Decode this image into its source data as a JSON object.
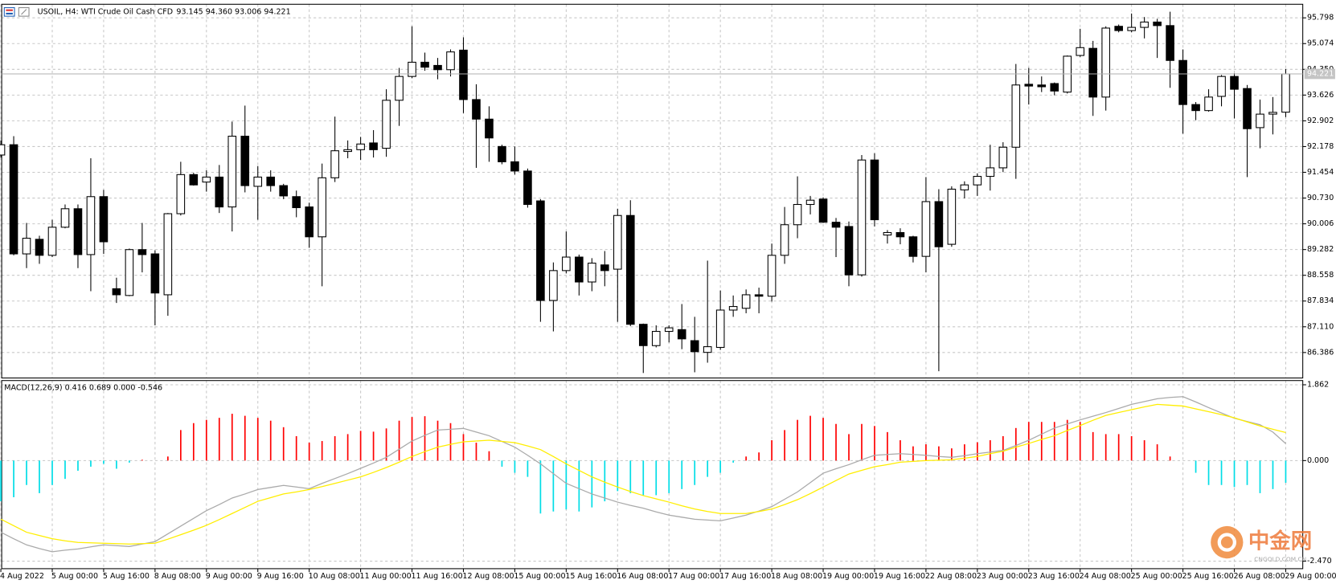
{
  "chart_data": [
    {
      "type": "candlestick",
      "title": "USOIL, H4:  WTI Crude Oil Cash CFD",
      "ohlc_text": "93.145 94.360 93.006 94.221",
      "categories": [
        "4 Aug 2022",
        null,
        null,
        null,
        "5 Aug 00:00",
        null,
        null,
        null,
        "5 Aug 16:00",
        null,
        null,
        null,
        "8 Aug 08:00",
        null,
        null,
        null,
        "9 Aug 00:00",
        null,
        null,
        null,
        "9 Aug 16:00",
        null,
        null,
        null,
        "10 Aug 08:00",
        null,
        null,
        null,
        "11 Aug 00:00",
        null,
        null,
        null,
        "11 Aug 16:00",
        null,
        null,
        null,
        "12 Aug 08:00",
        null,
        null,
        null,
        "15 Aug 00:00",
        null,
        null,
        null,
        "15 Aug 16:00",
        null,
        null,
        null,
        "16 Aug 08:00",
        null,
        null,
        null,
        "17 Aug 00:00",
        null,
        null,
        null,
        "17 Aug 16:00",
        null,
        null,
        null,
        "18 Aug 08:00",
        null,
        null,
        null,
        "19 Aug 00:00",
        null,
        null,
        null,
        "19 Aug 16:00",
        null,
        null,
        null,
        "22 Aug 08:00",
        null,
        null,
        null,
        "23 Aug 00:00",
        null,
        null,
        null,
        "23 Aug 16:00",
        null,
        null,
        null,
        "24 Aug 08:00",
        null,
        null,
        null,
        "25 Aug 00:00",
        null,
        null,
        null,
        "25 Aug 16:00",
        null,
        null,
        null,
        "26 Aug 08:00",
        null,
        null,
        null,
        "29 Aug 00:00"
      ],
      "open": [
        91.94,
        92.23,
        89.16,
        89.57,
        89.12,
        89.91,
        90.43,
        89.14,
        90.77,
        88.18,
        87.99,
        89.28,
        89.16,
        88.01,
        90.29,
        91.39,
        91.18,
        91.32,
        90.48,
        92.47,
        91.06,
        91.32,
        91.08,
        90.77,
        90.48,
        89.64,
        91.3,
        92.04,
        92.09,
        92.28,
        92.13,
        93.48,
        94.15,
        94.55,
        94.46,
        94.34,
        94.89,
        93.5,
        92.95,
        92.18,
        91.75,
        91.49,
        90.65,
        87.85,
        88.69,
        89.07,
        88.37,
        88.85,
        88.73,
        90.24,
        87.18,
        86.58,
        86.98,
        87.03,
        86.72,
        86.39,
        86.53,
        87.58,
        87.63,
        88.01,
        87.97,
        89.12,
        89.98,
        90.55,
        90.7,
        90.05,
        89.93,
        88.57,
        91.8,
        89.69,
        89.76,
        89.64,
        89.09,
        90.63,
        89.43,
        90.96,
        91.1,
        91.34,
        91.58,
        92.16,
        93.93,
        93.91,
        93.95,
        93.71,
        94.74,
        94.94,
        93.57,
        95.56,
        95.44,
        95.53,
        95.68,
        95.58,
        94.6,
        93.36,
        93.19,
        93.59,
        94.15,
        93.81,
        92.71,
        93.09,
        93.145
      ],
      "high": [
        92.35,
        92.47,
        90.03,
        89.67,
        90.12,
        90.55,
        90.55,
        91.85,
        90.96,
        88.49,
        89.31,
        90.03,
        89.26,
        90.31,
        91.75,
        91.44,
        91.51,
        91.66,
        92.88,
        93.33,
        91.63,
        91.51,
        91.13,
        90.94,
        90.6,
        91.7,
        93.02,
        92.35,
        92.45,
        92.64,
        93.79,
        94.39,
        95.56,
        94.82,
        94.67,
        94.91,
        95.25,
        93.93,
        93.31,
        92.23,
        92.18,
        91.56,
        90.7,
        88.92,
        89.79,
        89.14,
        89.04,
        89.24,
        90.43,
        90.67,
        87.2,
        87.15,
        87.15,
        87.75,
        87.39,
        88.97,
        88.13,
        87.99,
        88.16,
        88.21,
        89.45,
        90.48,
        91.34,
        90.79,
        90.75,
        90.17,
        90.07,
        91.94,
        91.99,
        89.83,
        89.88,
        89.67,
        91.32,
        90.98,
        91.06,
        91.2,
        91.42,
        92.23,
        92.3,
        94.5,
        94.39,
        94.15,
        93.98,
        94.74,
        95.49,
        95.15,
        95.56,
        95.61,
        95.92,
        95.82,
        95.77,
        95.97,
        94.91,
        93.43,
        93.79,
        94.19,
        94.24,
        93.91,
        93.5,
        93.57,
        94.36
      ],
      "low": [
        91.87,
        89.12,
        88.76,
        88.88,
        89.07,
        89.88,
        88.76,
        88.11,
        89.16,
        87.78,
        87.97,
        88.64,
        87.15,
        87.42,
        90.24,
        91.08,
        90.91,
        90.31,
        89.79,
        90.89,
        90.12,
        90.91,
        90.7,
        90.19,
        89.33,
        88.25,
        91.18,
        91.85,
        91.8,
        91.87,
        91.89,
        92.76,
        94.1,
        94.31,
        94.07,
        94.15,
        93.12,
        91.58,
        91.75,
        91.68,
        91.39,
        90.46,
        87.25,
        86.98,
        88.61,
        87.99,
        88.11,
        88.25,
        87.25,
        87.13,
        85.81,
        86.53,
        86.67,
        86.48,
        85.83,
        86.1,
        86.46,
        87.39,
        87.49,
        87.49,
        87.82,
        88.88,
        89.6,
        90.27,
        90.03,
        89.07,
        88.25,
        88.52,
        89.93,
        89.45,
        89.43,
        88.92,
        88.64,
        85.86,
        89.36,
        90.72,
        90.79,
        90.94,
        91.46,
        91.27,
        93.36,
        93.71,
        93.62,
        93.67,
        94.7,
        93.04,
        93.19,
        95.39,
        95.39,
        95.22,
        94.67,
        93.83,
        92.54,
        92.92,
        93.16,
        93.31,
        92.97,
        91.32,
        92.13,
        92.52,
        93.006
      ],
      "close": [
        92.23,
        89.16,
        89.6,
        89.12,
        89.91,
        90.43,
        89.14,
        90.77,
        89.5,
        88.01,
        89.28,
        89.14,
        88.06,
        90.29,
        91.39,
        91.1,
        91.32,
        90.48,
        92.47,
        91.08,
        91.32,
        91.08,
        90.79,
        90.46,
        89.64,
        91.3,
        92.06,
        92.09,
        92.25,
        92.09,
        93.48,
        94.15,
        94.55,
        94.41,
        94.34,
        94.84,
        93.5,
        92.95,
        92.42,
        91.75,
        91.49,
        90.55,
        87.85,
        88.69,
        89.07,
        88.37,
        88.9,
        88.69,
        90.24,
        87.18,
        86.58,
        86.98,
        87.08,
        86.77,
        86.41,
        86.55,
        87.58,
        87.68,
        88.01,
        87.97,
        89.12,
        89.98,
        90.55,
        90.67,
        90.05,
        89.91,
        88.57,
        91.8,
        90.12,
        89.76,
        89.64,
        89.09,
        90.63,
        89.36,
        90.98,
        91.1,
        91.34,
        91.58,
        92.16,
        93.91,
        93.88,
        93.86,
        93.74,
        94.72,
        94.96,
        93.57,
        95.51,
        95.44,
        95.53,
        95.68,
        95.58,
        94.6,
        93.36,
        93.19,
        93.57,
        94.15,
        93.79,
        92.68,
        93.09,
        93.14,
        94.221
      ],
      "up_color": "#ffffff",
      "down_color": "#000000",
      "ylim": [
        85.67,
        96.18
      ],
      "yticks": [
        95.798,
        95.074,
        {
          "value": 94.35,
          "label": "94.350"
        },
        93.626,
        92.902,
        92.178,
        91.454,
        {
          "value": 90.73,
          "label": "90.730"
        },
        90.006,
        89.282,
        88.558,
        87.834,
        {
          "value": 87.11,
          "label": "87.110"
        },
        86.386
      ],
      "grid": true,
      "last_price": 94.221
    },
    {
      "type": "macd",
      "title": "MACD(12,26,9) 0.416 0.689 0.000 -0.546",
      "histogram": [
        -1.0,
        -0.9,
        -0.6,
        -0.8,
        -0.6,
        -0.45,
        -0.25,
        -0.15,
        -0.08,
        -0.2,
        -0.05,
        0.02,
        0,
        0.1,
        0.75,
        0.92,
        1.0,
        1.05,
        1.15,
        1.1,
        1.05,
        0.98,
        0.82,
        0.6,
        0.44,
        0.48,
        0.6,
        0.65,
        0.73,
        0.71,
        0.79,
        0.98,
        1.07,
        1.09,
        0.98,
        0.92,
        0.65,
        0.44,
        0.23,
        -0.15,
        -0.3,
        -0.4,
        -1.3,
        -1.25,
        -1.2,
        -1.25,
        -1.15,
        -1.0,
        -0.75,
        -0.8,
        -0.85,
        -0.85,
        -0.8,
        -0.7,
        -0.6,
        -0.4,
        -0.3,
        -0.05,
        0.1,
        0.2,
        0.5,
        0.75,
        1.0,
        1.1,
        1.05,
        0.9,
        0.65,
        0.9,
        0.85,
        0.7,
        0.5,
        0.35,
        0.4,
        0.35,
        0.3,
        0.4,
        0.45,
        0.5,
        0.6,
        0.8,
        0.95,
        0.95,
        0.95,
        1.0,
        0.95,
        0.7,
        0.65,
        0.65,
        0.6,
        0.5,
        0.4,
        0.1,
        0,
        -0.3,
        -0.6,
        -0.6,
        -0.65,
        -0.6,
        -0.8,
        -0.7,
        -0.546
      ],
      "macd": [
        -1.76,
        -1.92,
        -2.07,
        -2.16,
        -2.24,
        -2.2,
        -2.17,
        -2.12,
        -2.07,
        -2.09,
        -2.11,
        -2.05,
        -1.99,
        -1.8,
        -1.61,
        -1.42,
        -1.23,
        -1.08,
        -0.92,
        -0.82,
        -0.71,
        -0.66,
        -0.61,
        -0.65,
        -0.69,
        -0.56,
        -0.44,
        -0.32,
        -0.19,
        -0.06,
        0.08,
        0.28,
        0.48,
        0.62,
        0.75,
        0.77,
        0.79,
        0.7,
        0.61,
        0.47,
        0.33,
        0.13,
        -0.08,
        -0.32,
        -0.56,
        -0.69,
        -0.82,
        -0.92,
        -1.02,
        -1.1,
        -1.17,
        -1.26,
        -1.34,
        -1.39,
        -1.44,
        -1.46,
        -1.48,
        -1.41,
        -1.34,
        -1.24,
        -1.13,
        -0.95,
        -0.77,
        -0.54,
        -0.31,
        -0.2,
        -0.1,
        0.02,
        0.13,
        0.15,
        0.17,
        0.15,
        0.13,
        0.1,
        0.08,
        0.12,
        0.17,
        0.21,
        0.25,
        0.37,
        0.5,
        0.65,
        0.8,
        0.9,
        1.0,
        1.09,
        1.18,
        1.28,
        1.38,
        1.45,
        1.52,
        1.55,
        1.57,
        1.44,
        1.3,
        1.17,
        1.04,
        0.96,
        0.88,
        0.7,
        0.416
      ],
      "signal": [
        -1.44,
        -1.6,
        -1.76,
        -1.84,
        -1.92,
        -1.97,
        -2.01,
        -2.02,
        -2.03,
        -2.04,
        -2.05,
        -2.04,
        -2.03,
        -1.93,
        -1.82,
        -1.71,
        -1.59,
        -1.45,
        -1.3,
        -1.15,
        -1.0,
        -0.91,
        -0.82,
        -0.77,
        -0.71,
        -0.64,
        -0.56,
        -0.48,
        -0.4,
        -0.29,
        -0.17,
        -0.04,
        0.1,
        0.22,
        0.33,
        0.4,
        0.46,
        0.48,
        0.5,
        0.47,
        0.44,
        0.36,
        0.27,
        0.1,
        -0.08,
        -0.24,
        -0.4,
        -0.53,
        -0.65,
        -0.76,
        -0.86,
        -0.94,
        -1.02,
        -1.11,
        -1.19,
        -1.25,
        -1.3,
        -1.3,
        -1.3,
        -1.25,
        -1.19,
        -1.08,
        -0.96,
        -0.81,
        -0.65,
        -0.49,
        -0.33,
        -0.24,
        -0.15,
        -0.1,
        -0.04,
        -0.02,
        0.0,
        0.01,
        0.02,
        0.06,
        0.1,
        0.17,
        0.23,
        0.33,
        0.42,
        0.52,
        0.61,
        0.74,
        0.86,
        0.99,
        1.11,
        1.18,
        1.25,
        1.32,
        1.38,
        1.36,
        1.34,
        1.27,
        1.2,
        1.13,
        1.05,
        0.95,
        0.85,
        0.77,
        0.689
      ],
      "positive_color": "#ff0000",
      "negative_color": "#00dde6",
      "macd_color": "#aaaaaa",
      "signal_color": "#ffee00",
      "ylim": [
        -2.655,
        1.966
      ],
      "yticks": [
        1.862,
        {
          "value": 0,
          "label": "0.000"
        },
        {
          "value": -2.47,
          "label": "-2.470"
        }
      ],
      "grid": true
    }
  ],
  "watermark": {
    "title": "中金网",
    "subtitle": "CNGOLD.COM.CN"
  }
}
